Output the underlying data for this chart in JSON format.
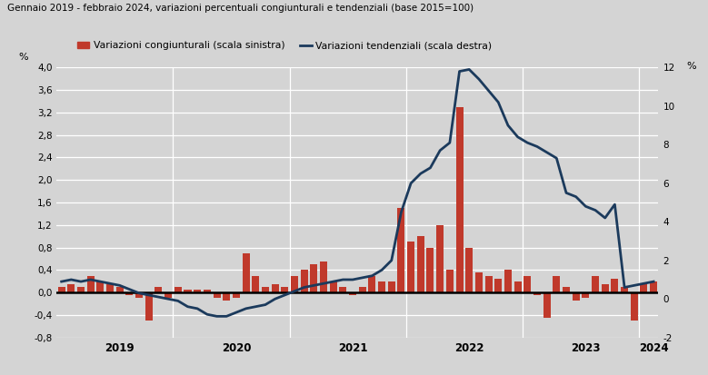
{
  "title": "Gennaio 2019 - febbraio 2024, variazioni percentuali congiunturali e tendenziali (base 2015=100)",
  "bar_color": "#c0392b",
  "line_color": "#1b3a5c",
  "background_color": "#d4d4d4",
  "fig_facecolor": "#d4d4d4",
  "ylabel_left": "%",
  "ylabel_right": "%",
  "ylim_left": [
    -0.8,
    4.0
  ],
  "ylim_right": [
    -2.0,
    12.0
  ],
  "yticks_left": [
    -0.8,
    -0.4,
    0.0,
    0.4,
    0.8,
    1.2,
    1.6,
    2.0,
    2.4,
    2.8,
    3.2,
    3.6,
    4.0
  ],
  "ytick_labels_left": [
    "-0,8",
    "-0,4",
    "0,0",
    "0,4",
    "0,8",
    "1,2",
    "1,6",
    "2,0",
    "2,4",
    "2,8",
    "3,2",
    "3,6",
    "4,0"
  ],
  "ytick_labels_right": [
    "-2",
    "0",
    "2",
    "4",
    "6",
    "8",
    "10",
    "12"
  ],
  "yticks_right": [
    -2,
    0,
    2,
    4,
    6,
    8,
    10,
    12
  ],
  "legend_bar": "Variazioni congiunturali (scala sinistra)",
  "legend_line": "Variazioni tendenziali (scala destra)",
  "bar_data": [
    0.1,
    0.15,
    0.1,
    0.3,
    0.2,
    0.15,
    0.1,
    -0.05,
    -0.1,
    -0.5,
    0.1,
    -0.1,
    0.1,
    0.05,
    0.05,
    0.05,
    -0.1,
    -0.15,
    -0.1,
    0.7,
    0.3,
    0.1,
    0.15,
    0.1,
    0.3,
    0.4,
    0.5,
    0.55,
    0.2,
    0.1,
    -0.05,
    0.1,
    0.3,
    0.2,
    0.2,
    1.5,
    0.9,
    1.0,
    0.8,
    1.2,
    0.4,
    3.3,
    0.8,
    0.35,
    0.3,
    0.25,
    0.4,
    0.2,
    0.3,
    -0.05,
    -0.45,
    0.3,
    0.1,
    -0.15,
    -0.1,
    0.3,
    0.15,
    0.25,
    0.1,
    -0.5,
    0.15,
    0.2
  ],
  "line_data": [
    0.9,
    1.0,
    0.9,
    1.0,
    0.9,
    0.8,
    0.7,
    0.5,
    0.3,
    0.2,
    0.1,
    0.0,
    -0.1,
    -0.4,
    -0.5,
    -0.8,
    -0.9,
    -0.9,
    -0.7,
    -0.5,
    -0.4,
    -0.3,
    0.0,
    0.2,
    0.4,
    0.6,
    0.7,
    0.8,
    0.9,
    1.0,
    1.0,
    1.1,
    1.2,
    1.5,
    2.0,
    4.5,
    6.0,
    6.5,
    6.8,
    7.7,
    8.1,
    11.8,
    11.9,
    11.4,
    10.8,
    10.2,
    9.0,
    8.4,
    8.1,
    7.9,
    7.6,
    7.3,
    5.5,
    5.3,
    4.8,
    4.6,
    4.2,
    4.9,
    0.6,
    0.7,
    0.8,
    0.9
  ],
  "n_months": 62,
  "x_tick_positions": [
    6,
    18,
    30,
    42,
    54,
    61
  ],
  "x_tick_labels": [
    "2019",
    "2020",
    "2021",
    "2022",
    "2023",
    "2024"
  ],
  "grid_color": "#bbbbbb",
  "zero_line_color": "#000000"
}
